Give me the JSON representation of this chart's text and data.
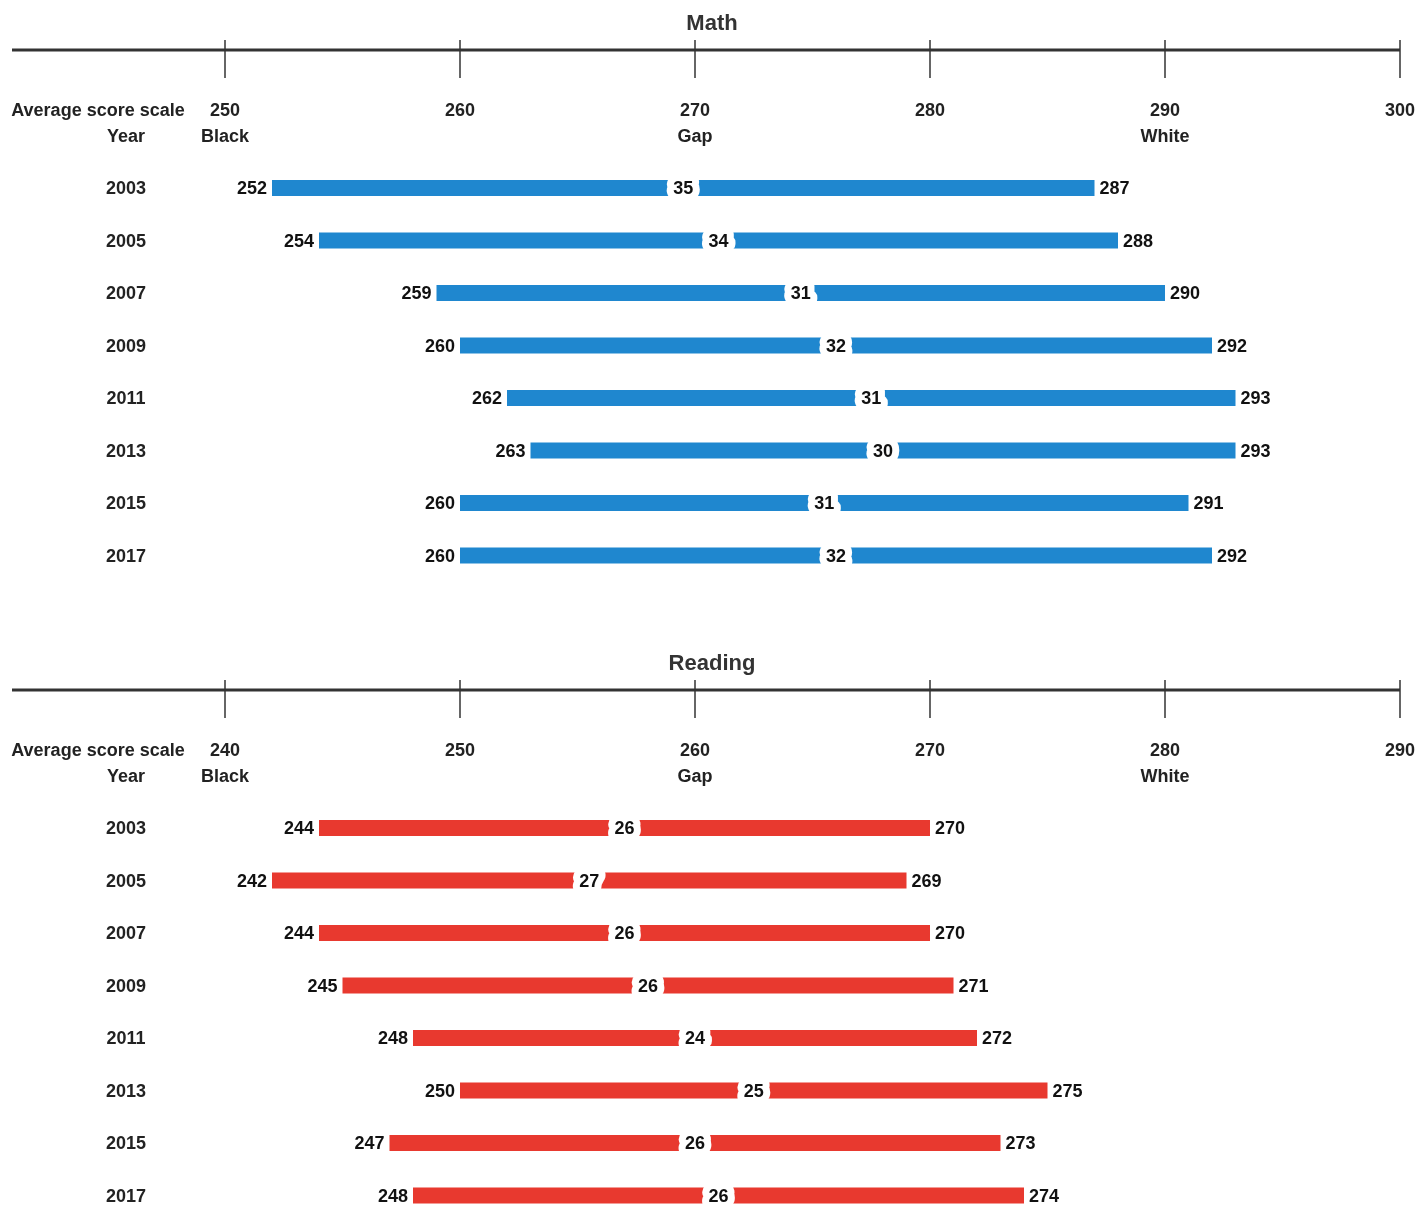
{
  "chart_data": [
    {
      "type": "bar",
      "orientation": "horizontal",
      "title": "Math",
      "xlabel": "Average score scale",
      "ylabel": "Year",
      "categories": [
        "2003",
        "2005",
        "2007",
        "2009",
        "2011",
        "2013",
        "2015",
        "2017"
      ],
      "base": [
        252,
        254,
        259,
        260,
        262,
        263,
        260,
        260
      ],
      "values": [
        35,
        34,
        31,
        32,
        31,
        30,
        31,
        32
      ],
      "color": "#1f87cf",
      "data_labels": true,
      "xlim": [
        250,
        300
      ],
      "xticks": [
        {
          "value": 250,
          "label": "250\nBlack"
        },
        260,
        {
          "value": 270,
          "label": "270\nGap"
        },
        280,
        {
          "value": 290,
          "label": "290\nWhite"
        },
        300
      ],
      "annotations": [
        {
          "text": "252",
          "x": 252,
          "y": "2003"
        },
        {
          "text": "287",
          "x": 287,
          "y": "2003"
        },
        {
          "text": "254",
          "x": 254,
          "y": "2005"
        },
        {
          "text": "288",
          "x": 288,
          "y": "2005"
        },
        {
          "text": "259",
          "x": 259,
          "y": "2007"
        },
        {
          "text": "290",
          "x": 290,
          "y": "2007"
        },
        {
          "text": "260",
          "x": 260,
          "y": "2009"
        },
        {
          "text": "292",
          "x": 292,
          "y": "2009"
        },
        {
          "text": "262",
          "x": 262,
          "y": "2011"
        },
        {
          "text": "293",
          "x": 293,
          "y": "2011"
        },
        {
          "text": "263",
          "x": 263,
          "y": "2013"
        },
        {
          "text": "293",
          "x": 293,
          "y": "2013"
        },
        {
          "text": "260",
          "x": 260,
          "y": "2015"
        },
        {
          "text": "291",
          "x": 291,
          "y": "2015"
        },
        {
          "text": "260",
          "x": 260,
          "y": "2017"
        },
        {
          "text": "292",
          "x": 292,
          "y": "2017"
        }
      ]
    },
    {
      "type": "bar",
      "orientation": "horizontal",
      "title": "Reading",
      "xlabel": "Average score scale",
      "ylabel": "Year",
      "categories": [
        "2003",
        "2005",
        "2007",
        "2009",
        "2011",
        "2013",
        "2015",
        "2017"
      ],
      "base": [
        244,
        242,
        244,
        245,
        248,
        250,
        247,
        248
      ],
      "values": [
        26,
        27,
        26,
        26,
        24,
        25,
        26,
        26
      ],
      "color": "#e8392f",
      "data_labels": true,
      "xlim": [
        240,
        290
      ],
      "xticks": [
        {
          "value": 240,
          "label": "240\nBlack"
        },
        250,
        {
          "value": 260,
          "label": "260\nGap"
        },
        270,
        {
          "value": 280,
          "label": "280\nWhite"
        },
        290
      ],
      "annotations": [
        {
          "text": "244",
          "x": 244,
          "y": "2003"
        },
        {
          "text": "270",
          "x": 270,
          "y": "2003"
        },
        {
          "text": "242",
          "x": 242,
          "y": "2005"
        },
        {
          "text": "269",
          "x": 269,
          "y": "2005"
        },
        {
          "text": "244",
          "x": 244,
          "y": "2007"
        },
        {
          "text": "270",
          "x": 270,
          "y": "2007"
        },
        {
          "text": "245",
          "x": 245,
          "y": "2009"
        },
        {
          "text": "271",
          "x": 271,
          "y": "2009"
        },
        {
          "text": "248",
          "x": 248,
          "y": "2011"
        },
        {
          "text": "272",
          "x": 272,
          "y": "2011"
        },
        {
          "text": "250",
          "x": 250,
          "y": "2013"
        },
        {
          "text": "275",
          "x": 275,
          "y": "2013"
        },
        {
          "text": "247",
          "x": 247,
          "y": "2015"
        },
        {
          "text": "273",
          "x": 273,
          "y": "2015"
        },
        {
          "text": "248",
          "x": 248,
          "y": "2017"
        },
        {
          "text": "274",
          "x": 274,
          "y": "2017"
        }
      ]
    }
  ]
}
